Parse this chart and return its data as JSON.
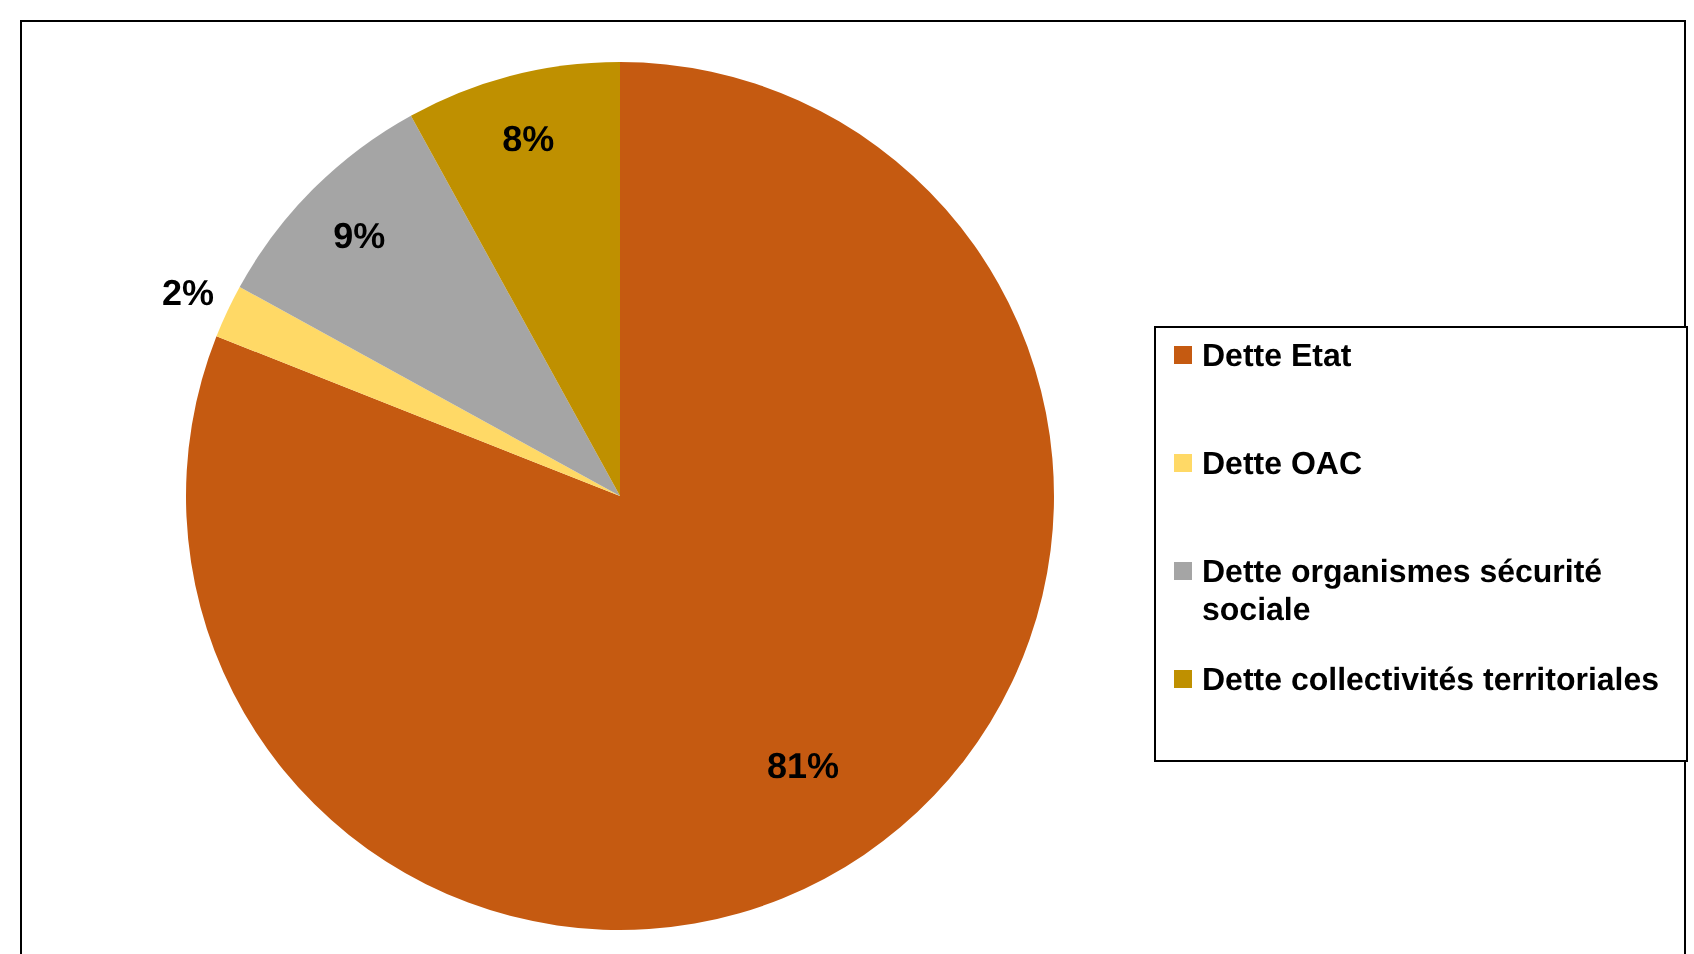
{
  "chart_data": {
    "type": "pie",
    "categories": [
      "Dette Etat",
      "Dette OAC",
      "Dette organismes sécurité sociale",
      "Dette collectivités territoriales"
    ],
    "values": [
      81,
      2,
      9,
      8
    ],
    "colors": [
      "#c55a11",
      "#ffd966",
      "#a5a5a5",
      "#bf9000"
    ],
    "value_labels": [
      "81%",
      "2%",
      "9%",
      "8%"
    ],
    "legend": "right"
  }
}
